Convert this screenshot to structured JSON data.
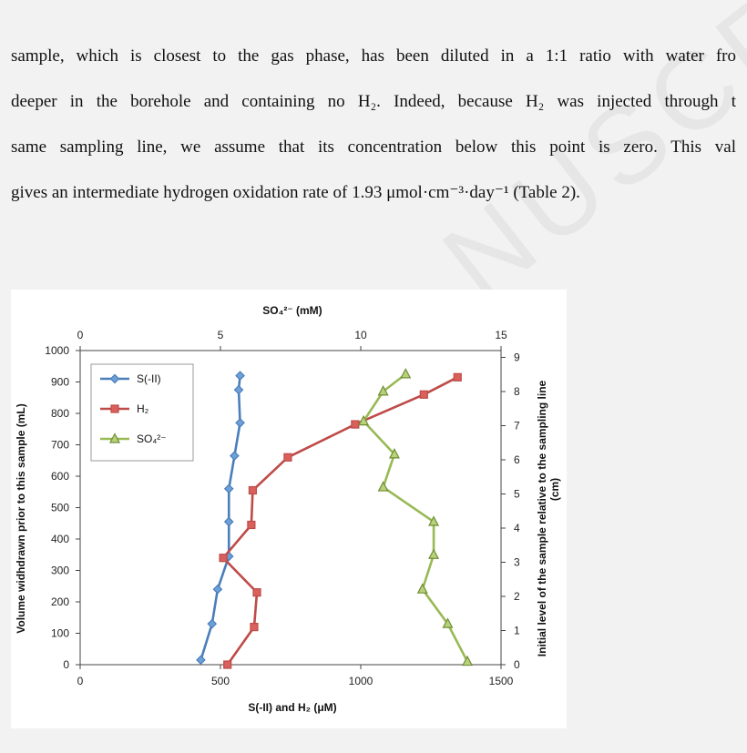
{
  "document": {
    "paragraph_lines": [
      "sample, which is closest to the gas phase, has been diluted in a 1:1 ratio with water fro",
      "deeper in the borehole and containing no H₂. Indeed, because H₂ was injected through t",
      "same sampling line, we assume that its concentration below this point is zero. This val",
      "gives an intermediate hydrogen oxidation rate of 1.93 μmol·cm⁻³·day⁻¹ (Table 2)."
    ],
    "watermark_text": "NUSCRIPT"
  },
  "chart_data": {
    "type": "line",
    "title": "SO₄²⁻ (mM)",
    "top_axis": {
      "label": "SO₄²⁻ (mM)",
      "range": [
        0,
        15
      ],
      "ticks": [
        0,
        5,
        10,
        15
      ]
    },
    "bottom_axis": {
      "label": "S(-II) and H₂ (μM)",
      "range": [
        0,
        1500
      ],
      "ticks": [
        0,
        500,
        1000,
        1500
      ]
    },
    "left_axis": {
      "label": "Volume widhdrawn prior to this sample (mL)",
      "range": [
        0,
        1000
      ],
      "ticks": [
        0,
        100,
        200,
        300,
        400,
        500,
        600,
        700,
        800,
        900,
        1000
      ]
    },
    "right_axis": {
      "label_line1": "Initial level of the sample relative to the sampling line",
      "label_line2": "(cm)",
      "range": [
        0,
        9.2
      ],
      "ticks": [
        0,
        1,
        2,
        3,
        4,
        5,
        6,
        7,
        8,
        9
      ]
    },
    "grid": false,
    "legend_position": "top-left",
    "series": [
      {
        "name": "S(-II)",
        "axis": "bottom",
        "color": "#4a7ebb",
        "marker": "diamond",
        "points": [
          [
            430,
            15
          ],
          [
            470,
            130
          ],
          [
            490,
            240
          ],
          [
            530,
            345
          ],
          [
            530,
            455
          ],
          [
            530,
            560
          ],
          [
            550,
            665
          ],
          [
            570,
            770
          ],
          [
            565,
            875
          ],
          [
            570,
            920
          ]
        ]
      },
      {
        "name": "H₂",
        "axis": "bottom",
        "color": "#be4b48",
        "marker": "square",
        "points": [
          [
            525,
            0
          ],
          [
            620,
            120
          ],
          [
            630,
            230
          ],
          [
            510,
            340
          ],
          [
            610,
            445
          ],
          [
            615,
            555
          ],
          [
            740,
            660
          ],
          [
            980,
            765
          ],
          [
            1225,
            860
          ],
          [
            1345,
            915
          ]
        ]
      },
      {
        "name": "SO₄²⁻",
        "axis": "top",
        "color": "#98b954",
        "marker": "triangle",
        "points": [
          [
            13.8,
            10
          ],
          [
            13.1,
            130
          ],
          [
            12.2,
            240
          ],
          [
            12.6,
            350
          ],
          [
            12.6,
            455
          ],
          [
            10.8,
            565
          ],
          [
            11.2,
            670
          ],
          [
            10.1,
            775
          ],
          [
            10.8,
            870
          ],
          [
            11.6,
            925
          ]
        ]
      }
    ]
  }
}
